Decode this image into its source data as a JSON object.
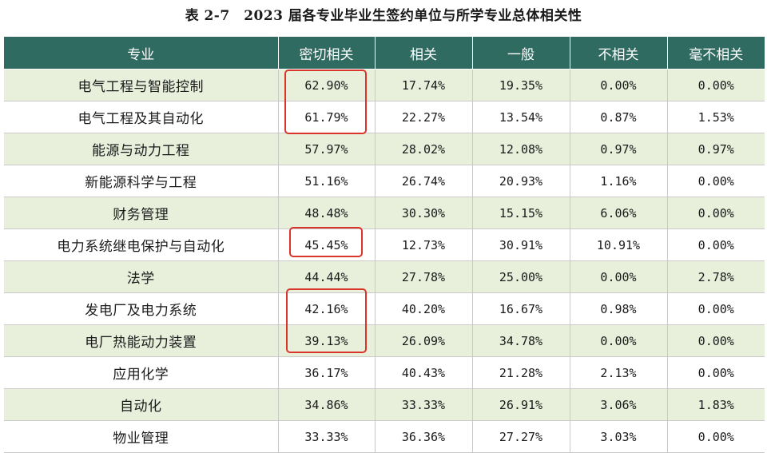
{
  "title": "表 2-7　2023 届各专业毕业生签约单位与所学专业总体相关性",
  "table": {
    "headers": [
      "专业",
      "密切相关",
      "相关",
      "一般",
      "不相关",
      "毫不相关"
    ],
    "rows": [
      [
        "电气工程与智能控制",
        "62.90%",
        "17.74%",
        "19.35%",
        "0.00%",
        "0.00%"
      ],
      [
        "电气工程及其自动化",
        "61.79%",
        "22.27%",
        "13.54%",
        "0.87%",
        "1.53%"
      ],
      [
        "能源与动力工程",
        "57.97%",
        "28.02%",
        "12.08%",
        "0.97%",
        "0.97%"
      ],
      [
        "新能源科学与工程",
        "51.16%",
        "26.74%",
        "20.93%",
        "1.16%",
        "0.00%"
      ],
      [
        "财务管理",
        "48.48%",
        "30.30%",
        "15.15%",
        "6.06%",
        "0.00%"
      ],
      [
        "电力系统继电保护与自动化",
        "45.45%",
        "12.73%",
        "30.91%",
        "10.91%",
        "0.00%"
      ],
      [
        "法学",
        "44.44%",
        "27.78%",
        "25.00%",
        "0.00%",
        "2.78%"
      ],
      [
        "发电厂及电力系统",
        "42.16%",
        "40.20%",
        "16.67%",
        "0.98%",
        "0.00%"
      ],
      [
        "电厂热能动力装置",
        "39.13%",
        "26.09%",
        "34.78%",
        "0.00%",
        "0.00%"
      ],
      [
        "应用化学",
        "36.17%",
        "40.43%",
        "21.28%",
        "2.13%",
        "0.00%"
      ],
      [
        "自动化",
        "34.86%",
        "33.33%",
        "26.91%",
        "3.06%",
        "1.83%"
      ],
      [
        "物业管理",
        "33.33%",
        "36.36%",
        "27.27%",
        "3.03%",
        "0.00%"
      ]
    ]
  },
  "colors": {
    "header_bg": "#2f6b61",
    "row_alt_bg": "#e8f0dc",
    "highlight_border": "#d9352b"
  }
}
